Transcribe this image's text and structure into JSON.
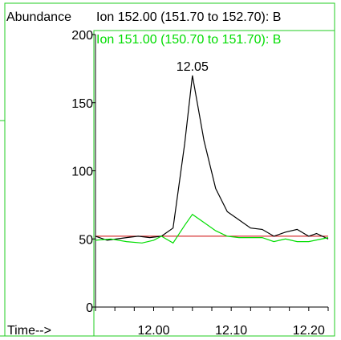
{
  "chart_data": {
    "type": "line",
    "ylabel": "Abundance",
    "xlabel": "Time-->",
    "xlim": [
      11.925,
      12.225
    ],
    "ylim": [
      0,
      200
    ],
    "y_ticks": [
      0,
      50,
      100,
      150,
      200
    ],
    "x_ticks": [
      12.0,
      12.1,
      12.2
    ],
    "x_tick_labels": [
      "12.00",
      "12.10",
      "12.20"
    ],
    "x_minor_step": 0.025,
    "grid": false,
    "series": [
      {
        "name": "Ion 152.00 (151.70 to 152.70): B",
        "color": "#000000",
        "x": [
          11.925,
          11.94,
          11.965,
          11.98,
          11.995,
          12.01,
          12.025,
          12.04,
          12.05,
          12.065,
          12.08,
          12.095,
          12.11,
          12.125,
          12.14,
          12.155,
          12.17,
          12.185,
          12.2,
          12.21,
          12.225
        ],
        "y": [
          52,
          49,
          51,
          52,
          51,
          52,
          58,
          120,
          170,
          122,
          87,
          70,
          64,
          58,
          57,
          52,
          55,
          57,
          52,
          54,
          50
        ]
      },
      {
        "name": "Ion 151.00 (150.70 to 151.70): B",
        "color": "#00dd00",
        "x": [
          11.925,
          11.945,
          11.965,
          11.985,
          12.0,
          12.01,
          12.025,
          12.04,
          12.05,
          12.065,
          12.08,
          12.095,
          12.11,
          12.125,
          12.14,
          12.155,
          12.17,
          12.185,
          12.2,
          12.225
        ],
        "y": [
          49,
          50,
          48,
          47,
          49,
          52,
          47,
          60,
          68,
          62,
          56,
          52,
          51,
          51,
          51,
          48,
          50,
          48,
          48,
          51
        ]
      }
    ],
    "baseline": {
      "x1": 11.925,
      "x2": 12.225,
      "y": 52,
      "color": "#cc0000"
    },
    "annotations": [
      {
        "text": "12.05",
        "x": 12.05,
        "y": 170
      }
    ]
  }
}
